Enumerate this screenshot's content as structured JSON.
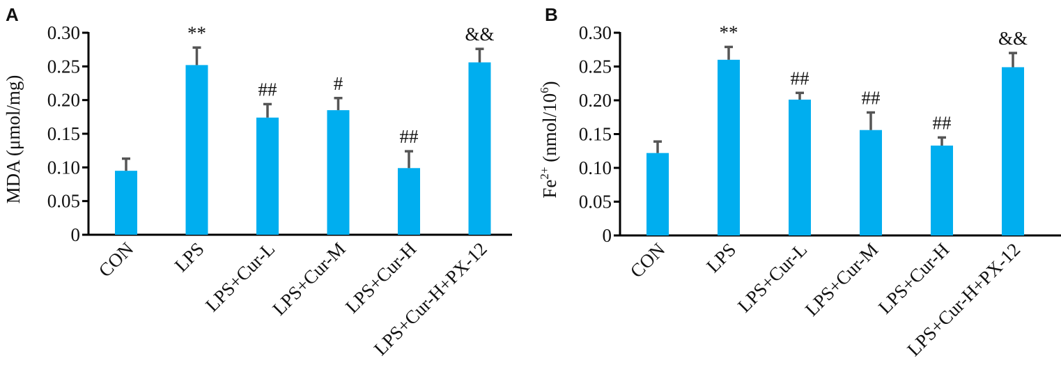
{
  "chart_data": [
    {
      "panel_label": "A",
      "type": "bar",
      "categories": [
        "CON",
        "LPS",
        "LPS+Cur-L",
        "LPS+Cur-M",
        "LPS+Cur-H",
        "LPS+Cur-H+PX-12"
      ],
      "values": [
        0.095,
        0.252,
        0.174,
        0.185,
        0.099,
        0.256
      ],
      "errors": [
        0.018,
        0.026,
        0.02,
        0.018,
        0.025,
        0.02
      ],
      "annotations": [
        "",
        "**",
        "##",
        "#",
        "##",
        "&&"
      ],
      "ylabel": "MDA (μmol/mg)",
      "ylabel_sup": "",
      "ylabel_tail": "",
      "ylim": [
        0,
        0.3
      ],
      "yticks": [
        "0",
        "0.05",
        "0.10",
        "0.15",
        "0.20",
        "0.25",
        "0.30"
      ],
      "bar_color": "#00AEEF",
      "error_color": "#555555"
    },
    {
      "panel_label": "B",
      "type": "bar",
      "categories": [
        "CON",
        "LPS",
        "LPS+Cur-L",
        "LPS+Cur-M",
        "LPS+Cur-H",
        "LPS+Cur-H+PX-12"
      ],
      "values": [
        0.122,
        0.26,
        0.201,
        0.156,
        0.133,
        0.249
      ],
      "errors": [
        0.017,
        0.019,
        0.01,
        0.026,
        0.012,
        0.021
      ],
      "annotations": [
        "",
        "**",
        "##",
        "##",
        "##",
        "&&"
      ],
      "ylabel": "Fe",
      "ylabel_sup": "2+",
      "ylabel_tail": " (nmol/10",
      "ylabel_sup2": "6",
      "ylabel_end": ")",
      "ylim": [
        0,
        0.3
      ],
      "yticks": [
        "0",
        "0.05",
        "0.10",
        "0.15",
        "0.20",
        "0.25",
        "0.30"
      ],
      "bar_color": "#00AEEF",
      "error_color": "#555555"
    }
  ]
}
